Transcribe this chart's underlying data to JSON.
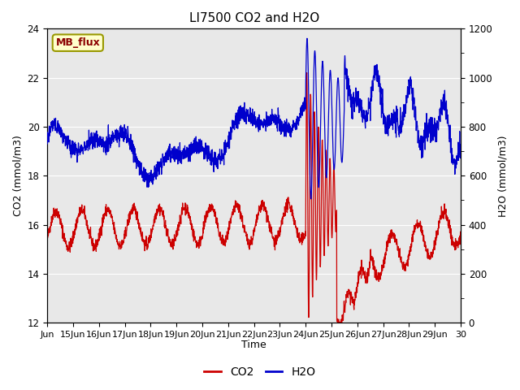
{
  "title": "LI7500 CO2 and H2O",
  "xlabel": "Time",
  "ylabel_left": "CO2 (mmol/m3)",
  "ylabel_right": "H2O (mmol/m3)",
  "co2_color": "#cc0000",
  "h2o_color": "#0000cc",
  "background_color": "#e8e8e8",
  "ylim_left": [
    12,
    24
  ],
  "ylim_right": [
    0,
    1200
  ],
  "yticks_left": [
    12,
    14,
    16,
    18,
    20,
    22,
    24
  ],
  "yticks_right": [
    0,
    200,
    400,
    600,
    800,
    1000,
    1200
  ],
  "xtick_labels": [
    "Jun",
    "15Jun",
    "16Jun",
    "17Jun",
    "18Jun",
    "19Jun",
    "20Jun",
    "21Jun",
    "22Jun",
    "23Jun",
    "24Jun",
    "25Jun",
    "26Jun",
    "27Jun",
    "28Jun",
    "29Jun",
    "30"
  ],
  "watermark_text": "MB_flux",
  "legend_co2": "CO2",
  "legend_h2o": "H2O",
  "seed": 42
}
